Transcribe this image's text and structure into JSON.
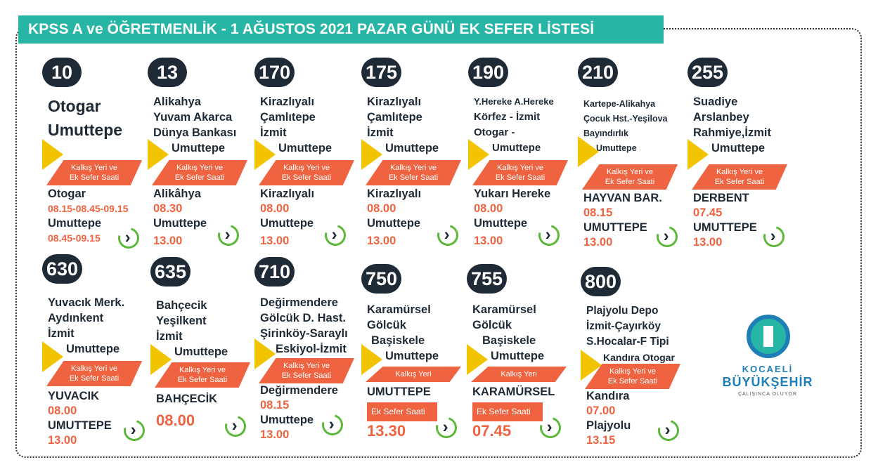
{
  "title": "KPSS A ve ÖĞRETMENLİK - 1 AĞUSTOS 2021 PAZAR GÜNÜ EK SEFER LİSTESİ",
  "ribbon_two": [
    "Kalkış Yeri ve",
    "Ek Sefer Saati"
  ],
  "ribbon_one": "Kalkış Yeri",
  "ek_sefer_label": "Ek Sefer Saati",
  "colors": {
    "banner": "#27b5a6",
    "badge": "#1e2a36",
    "ribbon": "#ef6340",
    "arrow": "#f2c400",
    "loop": "#5cb83a"
  },
  "logo": {
    "line1": "KOCAELİ",
    "line2": "BÜYÜKŞEHİR",
    "line3": "ÇALIŞINCA OLUYOR",
    "icon": "kocaeli-logo-icon"
  },
  "routes": [
    {
      "number": "10",
      "stops": [
        "Otogar",
        "Umuttepe"
      ],
      "from": "Otogar",
      "from_time": "08.15-08.45-09.15",
      "to": "Umuttepe",
      "to_time": "08.45-09.15"
    },
    {
      "number": "13",
      "stops": [
        "Alikahya",
        "Yuvam Akarca",
        "Dünya Bankası",
        "Umuttepe"
      ],
      "from": "Alikâhya",
      "from_time": "08.30",
      "to": "Umuttepe",
      "to_time": "13.00"
    },
    {
      "number": "170",
      "stops": [
        "Kirazlıyalı",
        "Çamlıtepe",
        "İzmit",
        "Umuttepe"
      ],
      "from": "Kirazlıyalı",
      "from_time": "08.00",
      "to": "Umuttepe",
      "to_time": "13.00"
    },
    {
      "number": "175",
      "stops": [
        "Kirazlıyalı",
        "Çamlıtepe",
        "İzmit",
        "Umuttepe"
      ],
      "from": "Kirazlıyalı",
      "from_time": "08.00",
      "to": "Umuttepe",
      "to_time": "13.00"
    },
    {
      "number": "190",
      "stops": [
        "Y.Hereke A.Hereke",
        "Körfez - İzmit",
        "Otogar -",
        "Umuttepe"
      ],
      "from": "Yukarı Hereke",
      "from_time": "08.00",
      "to": "Umuttepe",
      "to_time": "13.00"
    },
    {
      "number": "210",
      "stops": [
        "Kartepe-Alikahya",
        "Çocuk Hst.-Yeşilova",
        "Bayındırlık",
        "Umuttepe"
      ],
      "from": "HAYVAN BAR.",
      "from_time": "08.15",
      "to": "UMUTTEPE",
      "to_time": "13.00"
    },
    {
      "number": "255",
      "stops": [
        "Suadiye",
        "Arslanbey",
        "Rahmiye,İzmit",
        "Umuttepe"
      ],
      "from": "DERBENT",
      "from_time": "07.45",
      "to": "UMUTTEPE",
      "to_time": "13.00"
    },
    {
      "number": "630",
      "stops": [
        "Yuvacık Merk.",
        "Aydınkent",
        "İzmit",
        "Umuttepe"
      ],
      "from": "YUVACIK",
      "from_time": "08.00",
      "to": "UMUTTEPE",
      "to_time": "13.00"
    },
    {
      "number": "635",
      "stops": [
        "Bahçecik",
        "Yeşilkent",
        "İzmit",
        "Umuttepe"
      ],
      "from": "BAHÇECİK",
      "from_time": "08.00"
    },
    {
      "number": "710",
      "stops": [
        "Değirmendere",
        "Gölcük D. Hast.",
        "Şirinköy-Saraylı",
        "Eskiyol-İzmit"
      ],
      "from": "Değirmendere",
      "from_time": "08.15",
      "to": "Umuttepe",
      "to_time": "13.00"
    },
    {
      "number": "750",
      "stops": [
        "Karamürsel",
        "Gölcük",
        "Başiskele",
        "Umuttepe"
      ],
      "from": "UMUTTEPE",
      "from_time": "13.30"
    },
    {
      "number": "755",
      "stops": [
        "Karamürsel",
        "Gölcük",
        "Başiskele",
        "Umuttepe"
      ],
      "from": "KARAMÜRSEL",
      "from_time": "07.45"
    },
    {
      "number": "800",
      "stops": [
        "Plajyolu Depo",
        "İzmit-Çayırköy",
        "S.Hocalar-F Tipi",
        "Kandıra Otogar"
      ],
      "from": "Kandıra",
      "from_time": "07.00",
      "to": "Plajyolu",
      "to_time": "13.15"
    }
  ]
}
